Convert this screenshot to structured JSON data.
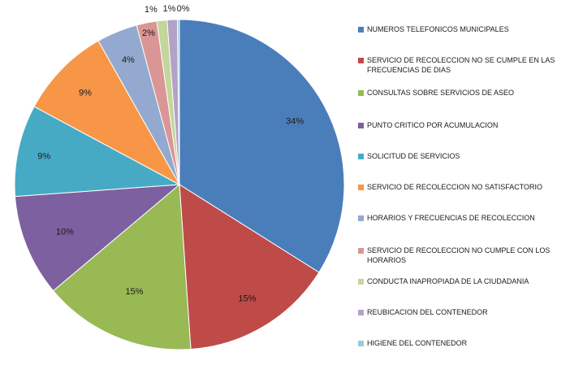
{
  "chart_data": {
    "type": "pie",
    "title": "",
    "categories": [
      "NUMEROS TELEFONICOS MUNICIPALES",
      "SERVICIO DE RECOLECCION NO SE CUMPLE EN LAS FRECUENCIAS DE DIAS",
      "CONSULTAS SOBRE SERVICIOS DE ASEO",
      "PUNTO CRITICO POR ACUMULACION",
      "SOLICITUD DE SERVICIOS",
      "SERVICIO DE RECOLECCION NO SATISFACTORIO",
      "HORARIOS Y FRECUENCIAS DE RECOLECCION",
      "SERVICIO DE RECOLECCION NO CUMPLE CON LOS HORARIOS",
      "CONDUCTA INAPROPIADA DE LA CIUDADANIA",
      "REUBICACION DEL CONTENEDOR",
      "HIGIENE DEL CONTENEDOR"
    ],
    "values": [
      34,
      15,
      15,
      10,
      9,
      9,
      4,
      2,
      1,
      1,
      0.2
    ],
    "labels": [
      "34%",
      "15%",
      "15%",
      "10%",
      "9%",
      "9%",
      "4%",
      "2%",
      "1%",
      "1%",
      "0%"
    ],
    "colors": [
      "#4a7ebb",
      "#be4b48",
      "#98b954",
      "#7d60a0",
      "#46aac5",
      "#f79646",
      "#93a9cf",
      "#d99694",
      "#c3d69b",
      "#b3a2c7",
      "#93cddd"
    ],
    "legend_position": "right"
  }
}
